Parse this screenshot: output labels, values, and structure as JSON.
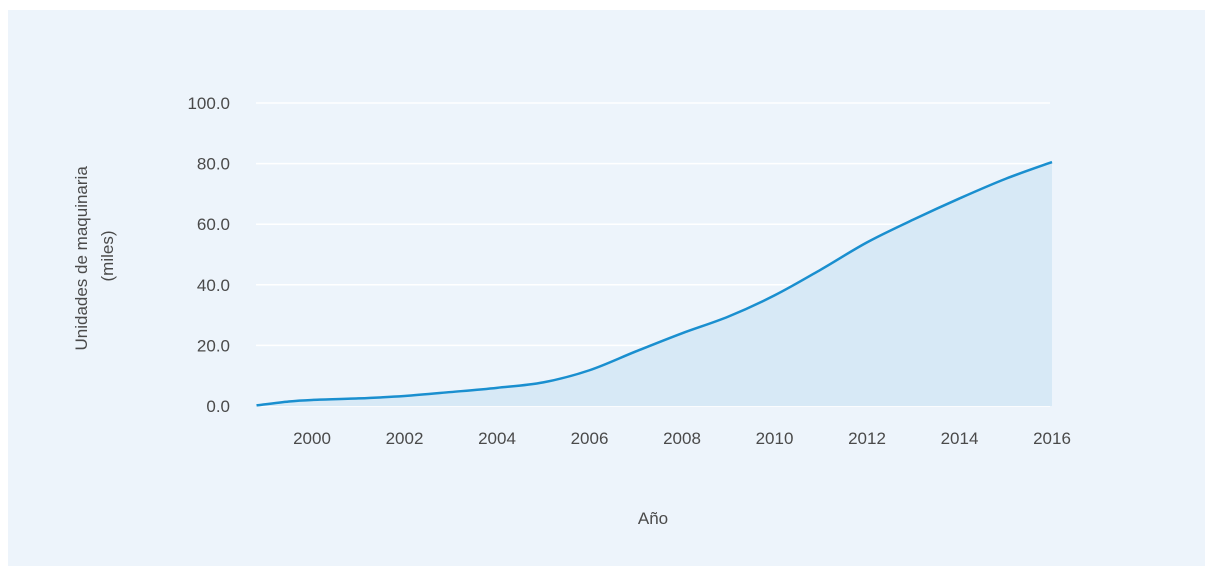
{
  "chart_data": {
    "type": "area",
    "title": "",
    "xlabel": "Año",
    "ylabel_lines": [
      "Unidades de maquinaria",
      "(miles)"
    ],
    "x": [
      1998.8,
      1999.5,
      2000,
      2001,
      2002,
      2003,
      2004,
      2005,
      2006,
      2007,
      2008,
      2009,
      2010,
      2011,
      2012,
      2013,
      2014,
      2015,
      2016
    ],
    "values": [
      0.2,
      1.5,
      2.0,
      2.5,
      3.3,
      4.6,
      6.0,
      7.8,
      11.8,
      18.0,
      24.0,
      29.5,
      36.5,
      45.0,
      54.0,
      61.5,
      68.5,
      75.0,
      80.5
    ],
    "xlim": [
      1998.8,
      2016
    ],
    "ylim": [
      0,
      100
    ],
    "x_ticks": [
      "2000",
      "2002",
      "2004",
      "2006",
      "2008",
      "2010",
      "2012",
      "2014",
      "2016"
    ],
    "y_ticks": [
      "0.0",
      "20.0",
      "40.0",
      "60.0",
      "80.0",
      "100.0"
    ],
    "grid": true,
    "colors": {
      "line": "#1a8fcf",
      "fill": "#d7e9f6",
      "grid": "#ffffff",
      "background": "#edf4fb"
    }
  }
}
